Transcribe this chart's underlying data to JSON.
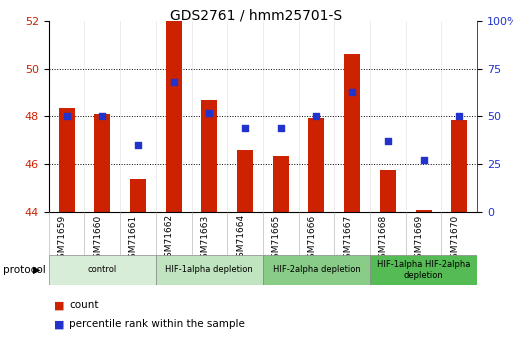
{
  "title": "GDS2761 / hmm25701-S",
  "samples": [
    "GSM71659",
    "GSM71660",
    "GSM71661",
    "GSM71662",
    "GSM71663",
    "GSM71664",
    "GSM71665",
    "GSM71666",
    "GSM71667",
    "GSM71668",
    "GSM71669",
    "GSM71670"
  ],
  "count_values": [
    48.35,
    48.1,
    45.4,
    52.1,
    48.7,
    46.6,
    46.35,
    47.95,
    50.6,
    45.75,
    44.1,
    47.85
  ],
  "percentile_values": [
    50,
    50,
    35,
    68,
    52,
    44,
    44,
    50,
    63,
    37,
    27,
    50
  ],
  "bar_bottom": 44,
  "ylim_left": [
    44,
    52
  ],
  "ylim_right": [
    0,
    100
  ],
  "yticks_left": [
    44,
    46,
    48,
    50,
    52
  ],
  "yticks_right": [
    0,
    25,
    50,
    75,
    100
  ],
  "ytick_labels_right": [
    "0",
    "25",
    "50",
    "75",
    "100%"
  ],
  "bar_color": "#cc2200",
  "dot_color": "#2233cc",
  "protocol_groups": [
    {
      "label": "control",
      "indices": [
        0,
        1,
        2
      ],
      "color": "#d8edd8"
    },
    {
      "label": "HIF-1alpha depletion",
      "indices": [
        3,
        4,
        5
      ],
      "color": "#c0e4c0"
    },
    {
      "label": "HIF-2alpha depletion",
      "indices": [
        6,
        7,
        8
      ],
      "color": "#88cc88"
    },
    {
      "label": "HIF-1alpha HIF-2alpha\ndepletion",
      "indices": [
        9,
        10,
        11
      ],
      "color": "#55bb55"
    }
  ],
  "legend_bar_label": "count",
  "legend_dot_label": "percentile rank within the sample",
  "tick_label_color_left": "#cc2200",
  "tick_label_color_right": "#2233cc",
  "grid_yticks": [
    46,
    48,
    50
  ]
}
